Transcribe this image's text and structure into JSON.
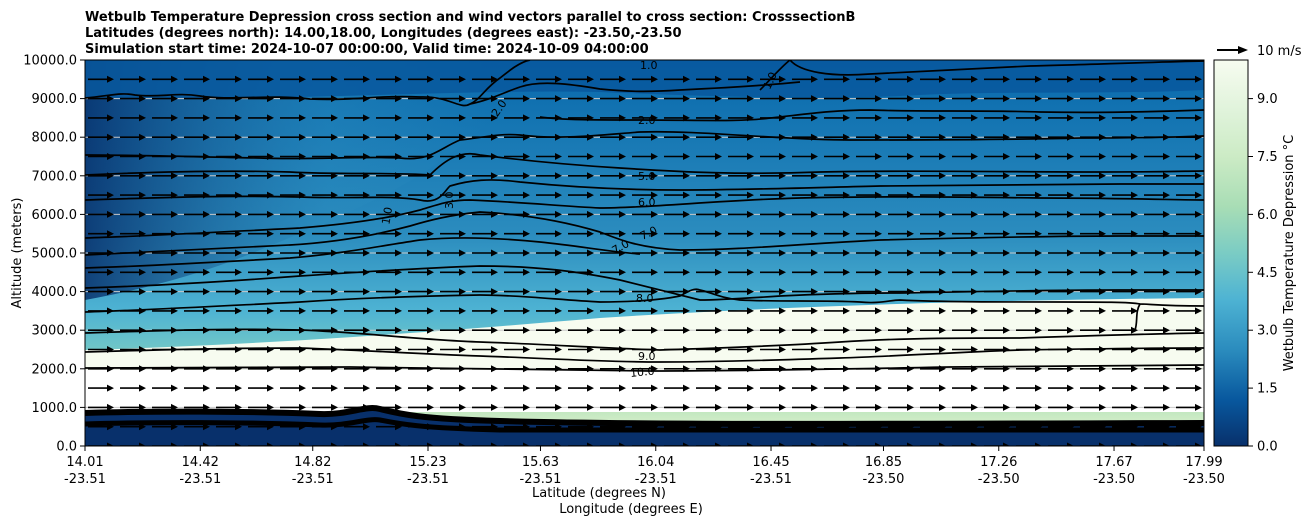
{
  "chart_data": {
    "type": "contour",
    "title_lines": [
      "Wetbulb Temperature Depression cross section and wind vectors parallel to cross section: CrosssectionB",
      "Latitudes (degrees north): 14.00,18.00, Longitudes (degrees east): -23.50,-23.50",
      "Simulation start time: 2024-10-07 00:00:00, Valid time: 2024-10-09 04:00:00"
    ],
    "ylabel": "Altitude (meters)",
    "xlabel_lat": "Latitude (degrees N)",
    "xlabel_lon": "Longitude (degrees E)",
    "ylim": [
      0,
      10000
    ],
    "y_ticks": [
      "0.0",
      "1000.0",
      "2000.0",
      "3000.0",
      "4000.0",
      "5000.0",
      "6000.0",
      "7000.0",
      "8000.0",
      "9000.0",
      "10000.0"
    ],
    "x_ticks": [
      {
        "lat": "14.01",
        "lon": "-23.51"
      },
      {
        "lat": "14.42",
        "lon": "-23.51"
      },
      {
        "lat": "14.82",
        "lon": "-23.51"
      },
      {
        "lat": "15.23",
        "lon": "-23.51"
      },
      {
        "lat": "15.63",
        "lon": "-23.51"
      },
      {
        "lat": "16.04",
        "lon": "-23.51"
      },
      {
        "lat": "16.45",
        "lon": "-23.51"
      },
      {
        "lat": "16.85",
        "lon": "-23.50"
      },
      {
        "lat": "17.26",
        "lon": "-23.50"
      },
      {
        "lat": "17.67",
        "lon": "-23.50"
      },
      {
        "lat": "17.99",
        "lon": "-23.50"
      }
    ],
    "colorbar": {
      "label": "Wetbulb Temperature Depression °C",
      "range": [
        0,
        10
      ],
      "ticks": [
        "0.0",
        "1.5",
        "3.0",
        "4.5",
        "6.0",
        "7.5",
        "9.0"
      ],
      "colormap": [
        "#08306b",
        "#08589e",
        "#2b8cbe",
        "#4eb3d3",
        "#7bccc4",
        "#a8ddb5",
        "#ccebc5",
        "#e0f3db",
        "#f7fcf0"
      ]
    },
    "contour_labels": [
      "1.0",
      "2.0",
      "3.0",
      "5.0",
      "6.0",
      "7.0",
      "8.0",
      "9.0",
      "10.0"
    ],
    "wind_vectors": {
      "direction": "parallel to cross section, toward increasing latitude",
      "reference_speed_label": "10 m/s",
      "level_range_m": [
        0,
        9500
      ]
    }
  }
}
